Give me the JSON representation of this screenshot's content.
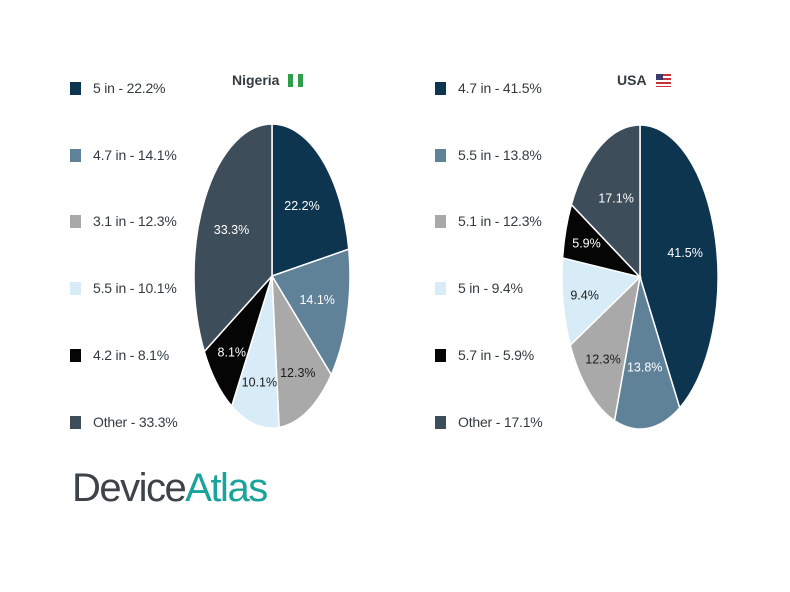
{
  "chart_data": [
    {
      "type": "pie",
      "title": "Nigeria",
      "flag": "nigeria-flag-icon",
      "slices": [
        {
          "label": "5 in - 22.2%",
          "value": 22.2,
          "pct_label": "22.2%",
          "color": "#0e3550",
          "text_color": "#ffffff"
        },
        {
          "label": "4.7 in - 14.1%",
          "value": 14.1,
          "pct_label": "14.1%",
          "color": "#5f8299",
          "text_color": "#ffffff"
        },
        {
          "label": "3.1 in - 12.3%",
          "value": 12.3,
          "pct_label": "12.3%",
          "color": "#a9a9a9",
          "text_color": "#1c1c1c"
        },
        {
          "label": "5.5 in - 10.1%",
          "value": 10.1,
          "pct_label": "10.1%",
          "color": "#d8ecf7",
          "text_color": "#1c1c1c"
        },
        {
          "label": "4.2 in - 8.1%",
          "value": 8.1,
          "pct_label": "8.1%",
          "color": "#050505",
          "text_color": "#ffffff"
        },
        {
          "label": "Other - 33.3%",
          "value": 33.3,
          "pct_label": "33.3%",
          "color": "#3e4d5a",
          "text_color": "#ffffff"
        }
      ]
    },
    {
      "type": "pie",
      "title": "USA",
      "flag": "usa-flag-icon",
      "slices": [
        {
          "label": "4.7 in - 41.5%",
          "value": 41.5,
          "pct_label": "41.5%",
          "color": "#0e3550",
          "text_color": "#ffffff"
        },
        {
          "label": "5.5 in - 13.8%",
          "value": 13.8,
          "pct_label": "13.8%",
          "color": "#5f8299",
          "text_color": "#ffffff"
        },
        {
          "label": "5.1 in - 12.3%",
          "value": 12.3,
          "pct_label": "12.3%",
          "color": "#a9a9a9",
          "text_color": "#1c1c1c"
        },
        {
          "label": "5 in - 9.4%",
          "value": 9.4,
          "pct_label": "9.4%",
          "color": "#d8ecf7",
          "text_color": "#1c1c1c"
        },
        {
          "label": "5.7 in - 5.9%",
          "value": 5.9,
          "pct_label": "5.9%",
          "color": "#050505",
          "text_color": "#ffffff"
        },
        {
          "label": "Other - 17.1%",
          "value": 17.1,
          "pct_label": "17.1%",
          "color": "#3e4d5a",
          "text_color": "#ffffff"
        }
      ]
    }
  ],
  "logo": {
    "part1": "Device",
    "part2": "Atlas"
  }
}
